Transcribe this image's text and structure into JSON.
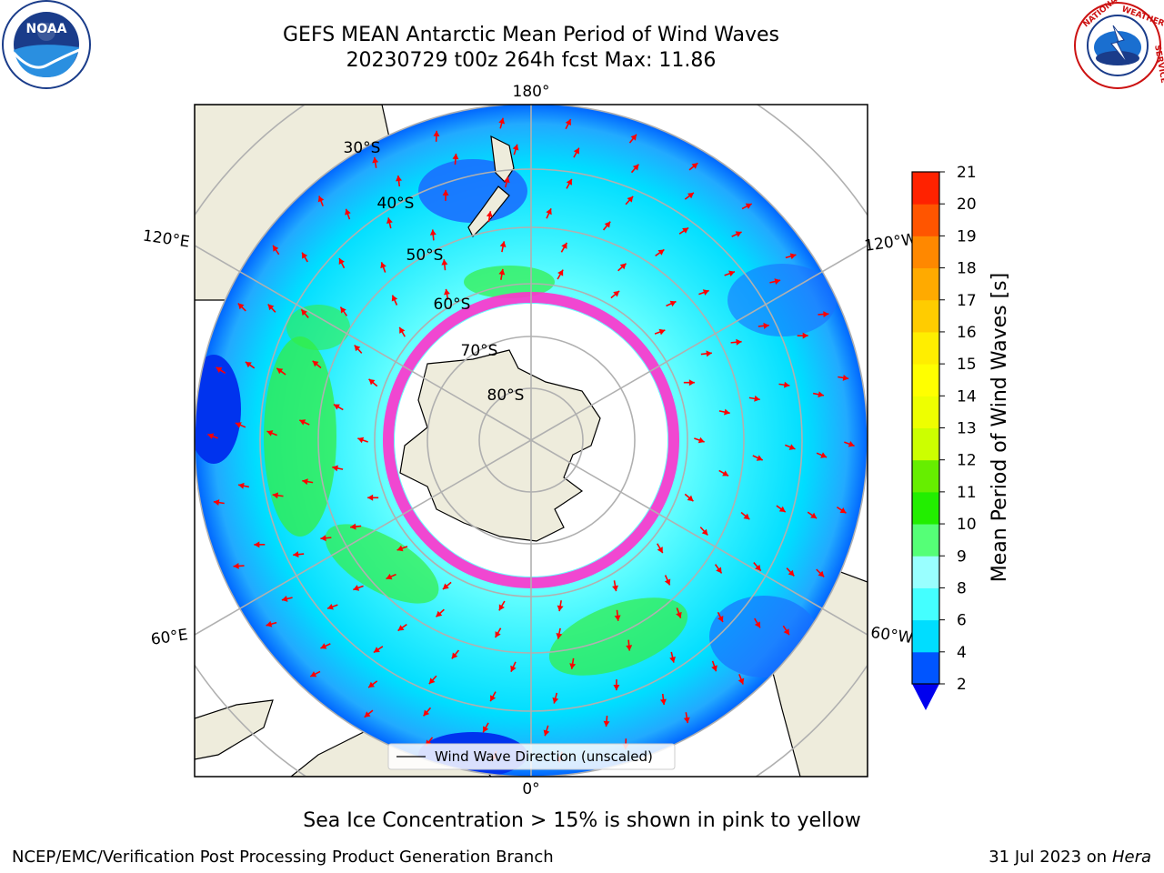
{
  "title": {
    "line1": "GEFS MEAN Antarctic Mean Period of Wind Waves",
    "line2": "20230729 t00z 264h fcst   Max: 11.86"
  },
  "logos": {
    "left": "NOAA",
    "right": "NATIONAL WEATHER SERVICE"
  },
  "map": {
    "longitude_labels": [
      "180°",
      "120°E",
      "120°W",
      "60°E",
      "60°W",
      "0°"
    ],
    "latitude_labels": [
      "30°S",
      "40°S",
      "50°S",
      "60°S",
      "70°S",
      "80°S"
    ],
    "legend_label": "Wind Wave Direction (unscaled)",
    "colors": {
      "land": "#eeecdc",
      "ice": "#ff33cc",
      "arrow": "#ff0000"
    }
  },
  "colorbar": {
    "label": "Mean Period of Wind Waves [s]",
    "ticks": [
      "2",
      "4",
      "6",
      "8",
      "9",
      "10",
      "11",
      "12",
      "13",
      "14",
      "15",
      "16",
      "17",
      "18",
      "19",
      "20",
      "21"
    ],
    "colors": [
      "#0055ff",
      "#00ddff",
      "#44ffff",
      "#99ffff",
      "#55ff77",
      "#22ee00",
      "#66ee00",
      "#ccff00",
      "#eeff00",
      "#ffff00",
      "#ffee00",
      "#ffcc00",
      "#ffaa00",
      "#ff8800",
      "#ff5500",
      "#ff2200",
      "#ff0000"
    ],
    "under_color": "#0000ee"
  },
  "footer": {
    "caption": "Sea Ice Concentration > 15% is shown in pink to yellow",
    "left": "NCEP/EMC/Verification Post Processing Product Generation Branch",
    "right_date": "31 Jul 2023 on ",
    "right_machine": "Hera"
  }
}
